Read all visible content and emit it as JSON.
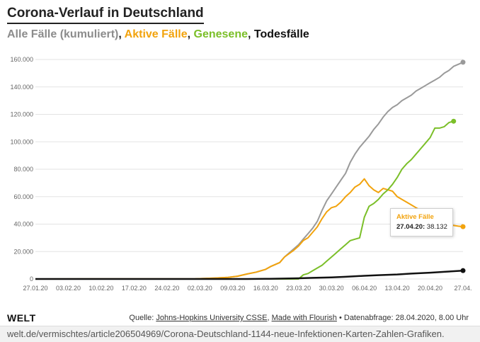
{
  "header": {
    "title": "Corona-Verlauf in Deutschland",
    "subtitle_all": "Alle Fälle (kumuliert)",
    "subtitle_active": "Aktive Fälle",
    "subtitle_recovered": "Genesene",
    "subtitle_deaths": "Todesfälle",
    "sep": ", "
  },
  "tooltip": {
    "title": "Aktive Fälle",
    "date": "27.04.20:",
    "value": "38.132"
  },
  "footer": {
    "logo": "WELT",
    "src_prefix": "Quelle: ",
    "src_link1": "Johns-Hopkins University CSSE",
    "src_sep": ", ",
    "src_link2": "Made with Flourish",
    "src_suffix": " • Datenabfrage: 28.04.2020, 8.00 Uhr",
    "url": "welt.de/vermischtes/article206504969/Corona-Deutschland-1144-neue-Infektionen-Karten-Zahlen-Grafiken."
  },
  "colors": {
    "all": "#9a9a9a",
    "active": "#f2a30d",
    "recovered": "#7bbf29",
    "deaths": "#111111"
  },
  "chart_data": {
    "type": "line",
    "title": "Corona-Verlauf in Deutschland",
    "xlabel": "",
    "ylabel": "",
    "ylim": [
      0,
      160000
    ],
    "y_ticks": [
      0,
      20000,
      40000,
      60000,
      80000,
      100000,
      120000,
      140000,
      160000
    ],
    "y_tick_labels": [
      "0",
      "20.000",
      "40.000",
      "60.000",
      "80.000",
      "100.000",
      "120.000",
      "140.000",
      "160.000"
    ],
    "x_tick_labels": [
      "27.01.20",
      "03.02.20",
      "10.02.20",
      "17.02.20",
      "24.02.20",
      "02.03.20",
      "09.03.20",
      "16.03.20",
      "23.03.20",
      "30.03.20",
      "06.04.20",
      "13.04.20",
      "20.04.20",
      "27.04."
    ],
    "x_tick_days": [
      0,
      7,
      14,
      21,
      28,
      35,
      42,
      49,
      56,
      63,
      70,
      77,
      84,
      91
    ],
    "x_start": "2020-01-27",
    "grid": true,
    "series": [
      {
        "name": "Alle Fälle (kumuliert)",
        "color": "#9a9a9a",
        "points": [
          [
            0,
            0
          ],
          [
            34,
            100
          ],
          [
            38,
            600
          ],
          [
            41,
            1200
          ],
          [
            43,
            2000
          ],
          [
            45,
            3600
          ],
          [
            47,
            5000
          ],
          [
            49,
            7000
          ],
          [
            50,
            9000
          ],
          [
            52,
            12000
          ],
          [
            53,
            16000
          ],
          [
            55,
            22000
          ],
          [
            56,
            25000
          ],
          [
            57,
            29000
          ],
          [
            58,
            33000
          ],
          [
            59,
            37000
          ],
          [
            60,
            42000
          ],
          [
            61,
            50000
          ],
          [
            62,
            57000
          ],
          [
            63,
            62000
          ],
          [
            64,
            67000
          ],
          [
            65,
            72000
          ],
          [
            66,
            77000
          ],
          [
            67,
            85000
          ],
          [
            68,
            91000
          ],
          [
            69,
            96000
          ],
          [
            70,
            100000
          ],
          [
            71,
            104000
          ],
          [
            72,
            109000
          ],
          [
            73,
            113000
          ],
          [
            74,
            118000
          ],
          [
            75,
            122000
          ],
          [
            76,
            125000
          ],
          [
            77,
            127000
          ],
          [
            78,
            130000
          ],
          [
            79,
            132000
          ],
          [
            80,
            134000
          ],
          [
            81,
            137000
          ],
          [
            82,
            139000
          ],
          [
            83,
            141000
          ],
          [
            84,
            143000
          ],
          [
            85,
            145000
          ],
          [
            86,
            147000
          ],
          [
            87,
            150000
          ],
          [
            88,
            152000
          ],
          [
            89,
            155000
          ],
          [
            90,
            156500
          ],
          [
            91,
            158000
          ]
        ]
      },
      {
        "name": "Aktive Fälle",
        "color": "#f2a30d",
        "points": [
          [
            0,
            0
          ],
          [
            34,
            100
          ],
          [
            38,
            600
          ],
          [
            41,
            1200
          ],
          [
            43,
            2000
          ],
          [
            45,
            3600
          ],
          [
            47,
            5000
          ],
          [
            49,
            7000
          ],
          [
            50,
            9000
          ],
          [
            52,
            12000
          ],
          [
            53,
            16000
          ],
          [
            55,
            21000
          ],
          [
            56,
            24000
          ],
          [
            57,
            28000
          ],
          [
            58,
            30000
          ],
          [
            59,
            34000
          ],
          [
            60,
            38000
          ],
          [
            61,
            44000
          ],
          [
            62,
            49000
          ],
          [
            63,
            52000
          ],
          [
            64,
            53000
          ],
          [
            65,
            56000
          ],
          [
            66,
            60000
          ],
          [
            67,
            63000
          ],
          [
            68,
            67000
          ],
          [
            69,
            69000
          ],
          [
            70,
            73000
          ],
          [
            71,
            68000
          ],
          [
            72,
            65000
          ],
          [
            73,
            63000
          ],
          [
            74,
            66000
          ],
          [
            75,
            65000
          ],
          [
            76,
            64000
          ],
          [
            77,
            60000
          ],
          [
            78,
            58000
          ],
          [
            79,
            56000
          ],
          [
            80,
            54000
          ],
          [
            81,
            52000
          ],
          [
            82,
            50000
          ],
          [
            83,
            47000
          ],
          [
            84,
            45000
          ],
          [
            85,
            43000
          ],
          [
            86,
            42000
          ],
          [
            87,
            40500
          ],
          [
            88,
            39500
          ],
          [
            89,
            39000
          ],
          [
            90,
            38500
          ],
          [
            91,
            38132
          ]
        ]
      },
      {
        "name": "Genesene",
        "color": "#7bbf29",
        "points": [
          [
            0,
            0
          ],
          [
            56,
            0
          ],
          [
            57,
            3000
          ],
          [
            58,
            4000
          ],
          [
            59,
            6000
          ],
          [
            60,
            8000
          ],
          [
            61,
            10000
          ],
          [
            62,
            13000
          ],
          [
            63,
            16000
          ],
          [
            64,
            19000
          ],
          [
            65,
            22000
          ],
          [
            66,
            25000
          ],
          [
            67,
            28000
          ],
          [
            68,
            29000
          ],
          [
            69,
            30000
          ],
          [
            70,
            45000
          ],
          [
            71,
            53000
          ],
          [
            72,
            55000
          ],
          [
            73,
            58000
          ],
          [
            74,
            62000
          ],
          [
            75,
            65000
          ],
          [
            76,
            69000
          ],
          [
            77,
            74000
          ],
          [
            78,
            80000
          ],
          [
            79,
            84000
          ],
          [
            80,
            87000
          ],
          [
            81,
            91000
          ],
          [
            82,
            95000
          ],
          [
            83,
            99000
          ],
          [
            84,
            103000
          ],
          [
            85,
            110000
          ],
          [
            86,
            110000
          ],
          [
            87,
            111000
          ],
          [
            88,
            114000
          ],
          [
            89,
            115000
          ]
        ]
      },
      {
        "name": "Todesfälle",
        "color": "#111111",
        "points": [
          [
            0,
            0
          ],
          [
            45,
            10
          ],
          [
            49,
            100
          ],
          [
            53,
            300
          ],
          [
            56,
            500
          ],
          [
            59,
            800
          ],
          [
            63,
            1200
          ],
          [
            66,
            1600
          ],
          [
            70,
            2300
          ],
          [
            73,
            2800
          ],
          [
            77,
            3300
          ],
          [
            80,
            3900
          ],
          [
            84,
            4600
          ],
          [
            87,
            5200
          ],
          [
            90,
            5900
          ],
          [
            91,
            6100
          ]
        ]
      }
    ]
  }
}
